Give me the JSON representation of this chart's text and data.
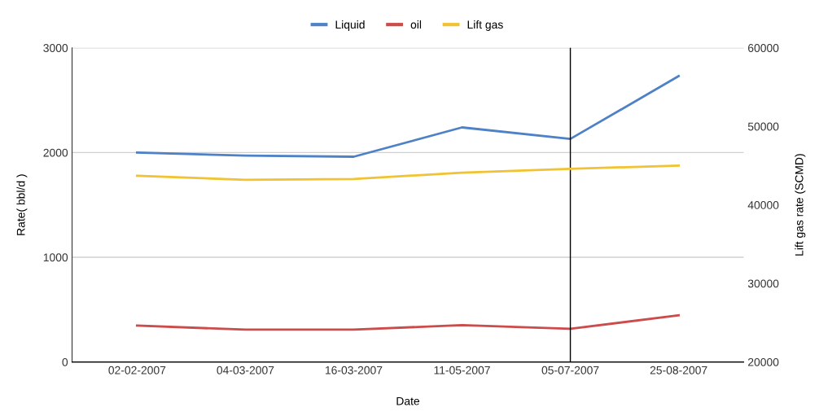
{
  "chart_data": {
    "type": "line",
    "xlabel": "Date",
    "ylabel": "Rate( bbl/d )",
    "y2label": "Lift gas rate (SCMD)",
    "categories": [
      "02-02-2007",
      "04-03-2007",
      "16-03-2007",
      "11-05-2007",
      "05-07-2007",
      "25-08-2007"
    ],
    "series": [
      {
        "name": "Liquid",
        "color": "#4f81c7",
        "values": [
          2000,
          1970,
          1960,
          2240,
          2130,
          2730
        ]
      },
      {
        "name": "oil",
        "color": "#cc4b4b",
        "values": [
          347,
          308,
          308,
          352,
          316,
          445
        ]
      },
      {
        "name": "Lift gas",
        "color": "#f1c232",
        "axis": "y2",
        "values": [
          43700,
          43200,
          43300,
          44100,
          44600,
          45000
        ]
      }
    ],
    "ylim": [
      0,
      3000
    ],
    "yticks": [
      0,
      1000,
      2000,
      3000
    ],
    "y2lim": [
      20000,
      60000
    ],
    "y2ticks": [
      20000,
      30000,
      40000,
      50000,
      60000
    ],
    "ref_lines": [
      {
        "axis": "x",
        "value": "05-07-2007",
        "color": "#000000"
      }
    ],
    "grid": "y",
    "legend": "top",
    "marker": "none",
    "line_style": "solid"
  }
}
